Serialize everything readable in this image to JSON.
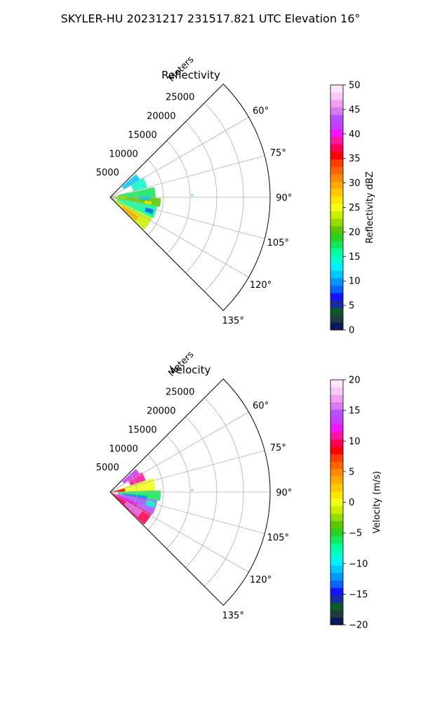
{
  "figure": {
    "title": "SKYLER-HU  20231217  231517.821 UTC Elevation 16°"
  },
  "chart_data": [
    {
      "type": "heatmap",
      "projection": "polar-sector",
      "title": "Reflectivity",
      "range_label": "Meters",
      "range_ticks": [
        5000,
        10000,
        15000,
        20000,
        25000
      ],
      "range_tick_labels": [
        "5000",
        "10000",
        "15000",
        "20000",
        "25000"
      ],
      "rmax": 30000,
      "azimuth_ticks": [
        60,
        75,
        90,
        105,
        120,
        135
      ],
      "azimuth_tick_labels": [
        "60°",
        "75°",
        "90°",
        "105°",
        "120°",
        "135°"
      ],
      "azimuth_range": [
        45,
        135
      ],
      "grid": true,
      "colorbar": {
        "label": "Reflectivity dBZ",
        "min": 0,
        "max": 50,
        "ticks": [
          0,
          5,
          10,
          15,
          20,
          25,
          30,
          35,
          40,
          45,
          50
        ],
        "tick_labels": [
          "0",
          "5",
          "10",
          "15",
          "20",
          "25",
          "30",
          "35",
          "40",
          "45",
          "50"
        ],
        "colors": [
          "#0a1a5a",
          "#1e3c3c",
          "#0c5a2c",
          "#1a2aa0",
          "#1414ff",
          "#0a64ff",
          "#0096ff",
          "#00c8ff",
          "#00f0ff",
          "#00ffcc",
          "#00ff9a",
          "#14e85a",
          "#28d21e",
          "#5ac800",
          "#96dc00",
          "#c8f000",
          "#f0ff14",
          "#ffe600",
          "#ffc800",
          "#ffaa00",
          "#ff8c00",
          "#ff6400",
          "#ff3c00",
          "#ff0000",
          "#ff0050",
          "#ff14a0",
          "#f014ff",
          "#c83cff",
          "#b450ff",
          "#dc78f0",
          "#f0a0f0",
          "#f8c8f8",
          "#fce6fc"
        ]
      },
      "echo_regions": [
        {
          "az_min": 48,
          "az_max": 60,
          "r_min": 3000,
          "r_max": 6500,
          "value": 12
        },
        {
          "az_min": 59,
          "az_max": 76,
          "r_min": 4500,
          "r_max": 7200,
          "value": 14
        },
        {
          "az_min": 77,
          "az_max": 91,
          "r_min": 1500,
          "r_max": 8500,
          "value": 18
        },
        {
          "az_min": 91,
          "az_max": 101,
          "r_min": 1000,
          "r_max": 9500,
          "value": 20
        },
        {
          "az_min": 101,
          "az_max": 116,
          "r_min": 1500,
          "r_max": 9000,
          "value": 16
        },
        {
          "az_min": 116,
          "az_max": 134,
          "r_min": 500,
          "r_max": 8800,
          "value": 24
        },
        {
          "az_min": 83,
          "az_max": 99,
          "r_min": 300,
          "r_max": 3000,
          "value": 22
        },
        {
          "az_min": 96,
          "az_max": 100,
          "r_min": 6500,
          "r_max": 7800,
          "value": 27
        },
        {
          "az_min": 124,
          "az_max": 133,
          "r_min": 3000,
          "r_max": 6500,
          "value": 29
        },
        {
          "az_min": 88,
          "az_max": 94,
          "r_min": 5500,
          "r_max": 7500,
          "value": 11
        },
        {
          "az_min": 106,
          "az_max": 112,
          "r_min": 7000,
          "r_max": 8500,
          "value": 9
        },
        {
          "az_min": 88,
          "az_max": 89,
          "r_min": 15200,
          "r_max": 15500,
          "value": 18
        }
      ]
    },
    {
      "type": "heatmap",
      "projection": "polar-sector",
      "title": "Velocity",
      "range_label": "Meters",
      "range_ticks": [
        5000,
        10000,
        15000,
        20000,
        25000
      ],
      "range_tick_labels": [
        "5000",
        "10000",
        "15000",
        "20000",
        "25000"
      ],
      "rmax": 30000,
      "azimuth_ticks": [
        60,
        75,
        90,
        105,
        120,
        135
      ],
      "azimuth_tick_labels": [
        "60°",
        "75°",
        "90°",
        "105°",
        "120°",
        "135°"
      ],
      "azimuth_range": [
        45,
        135
      ],
      "grid": true,
      "colorbar": {
        "label": "Velocity (m/s)",
        "min": -20,
        "max": 20,
        "ticks": [
          -20,
          -15,
          -10,
          -5,
          0,
          5,
          10,
          15,
          20
        ],
        "tick_labels": [
          "−20",
          "−15",
          "−10",
          "−5",
          "0",
          "5",
          "10",
          "15",
          "20"
        ],
        "colors": [
          "#0a1a5a",
          "#1e3c3c",
          "#0c5a2c",
          "#1a2aa0",
          "#1414ff",
          "#0a64ff",
          "#0096ff",
          "#00c8ff",
          "#00f0ff",
          "#00ffcc",
          "#00ff9a",
          "#14e85a",
          "#28d21e",
          "#5ac800",
          "#96dc00",
          "#c8f000",
          "#f0ff14",
          "#ffe600",
          "#ffc800",
          "#ffaa00",
          "#ff8c00",
          "#ff6400",
          "#ff3c00",
          "#ff0000",
          "#ff0050",
          "#ff14a0",
          "#f014ff",
          "#c83cff",
          "#b450ff",
          "#dc78f0",
          "#f0a0f0",
          "#f8c8f8",
          "#fce6fc"
        ]
      },
      "echo_regions": [
        {
          "az_min": 48,
          "az_max": 58,
          "r_min": 3000,
          "r_max": 6500,
          "value": 13
        },
        {
          "az_min": 58,
          "az_max": 72,
          "r_min": 4000,
          "r_max": 7000,
          "value": 11
        },
        {
          "az_min": 72,
          "az_max": 90,
          "r_min": 1500,
          "r_max": 8500,
          "value": 0
        },
        {
          "az_min": 76,
          "az_max": 88,
          "r_min": 300,
          "r_max": 2800,
          "value": 8
        },
        {
          "az_min": 88,
          "az_max": 100,
          "r_min": 1500,
          "r_max": 9500,
          "value": -6
        },
        {
          "az_min": 96,
          "az_max": 108,
          "r_min": 2500,
          "r_max": 7000,
          "value": -12
        },
        {
          "az_min": 100,
          "az_max": 118,
          "r_min": 1500,
          "r_max": 9000,
          "value": 15
        },
        {
          "az_min": 112,
          "az_max": 126,
          "r_min": 300,
          "r_max": 5500,
          "value": 12
        },
        {
          "az_min": 118,
          "az_max": 134,
          "r_min": 500,
          "r_max": 8800,
          "value": 10
        },
        {
          "az_min": 120,
          "az_max": 132,
          "r_min": 3500,
          "r_max": 7000,
          "value": 16
        },
        {
          "az_min": 102,
          "az_max": 110,
          "r_min": 7000,
          "r_max": 8800,
          "value": -8
        },
        {
          "az_min": 88,
          "az_max": 89,
          "r_min": 15200,
          "r_max": 15500,
          "value": -4
        }
      ]
    }
  ]
}
